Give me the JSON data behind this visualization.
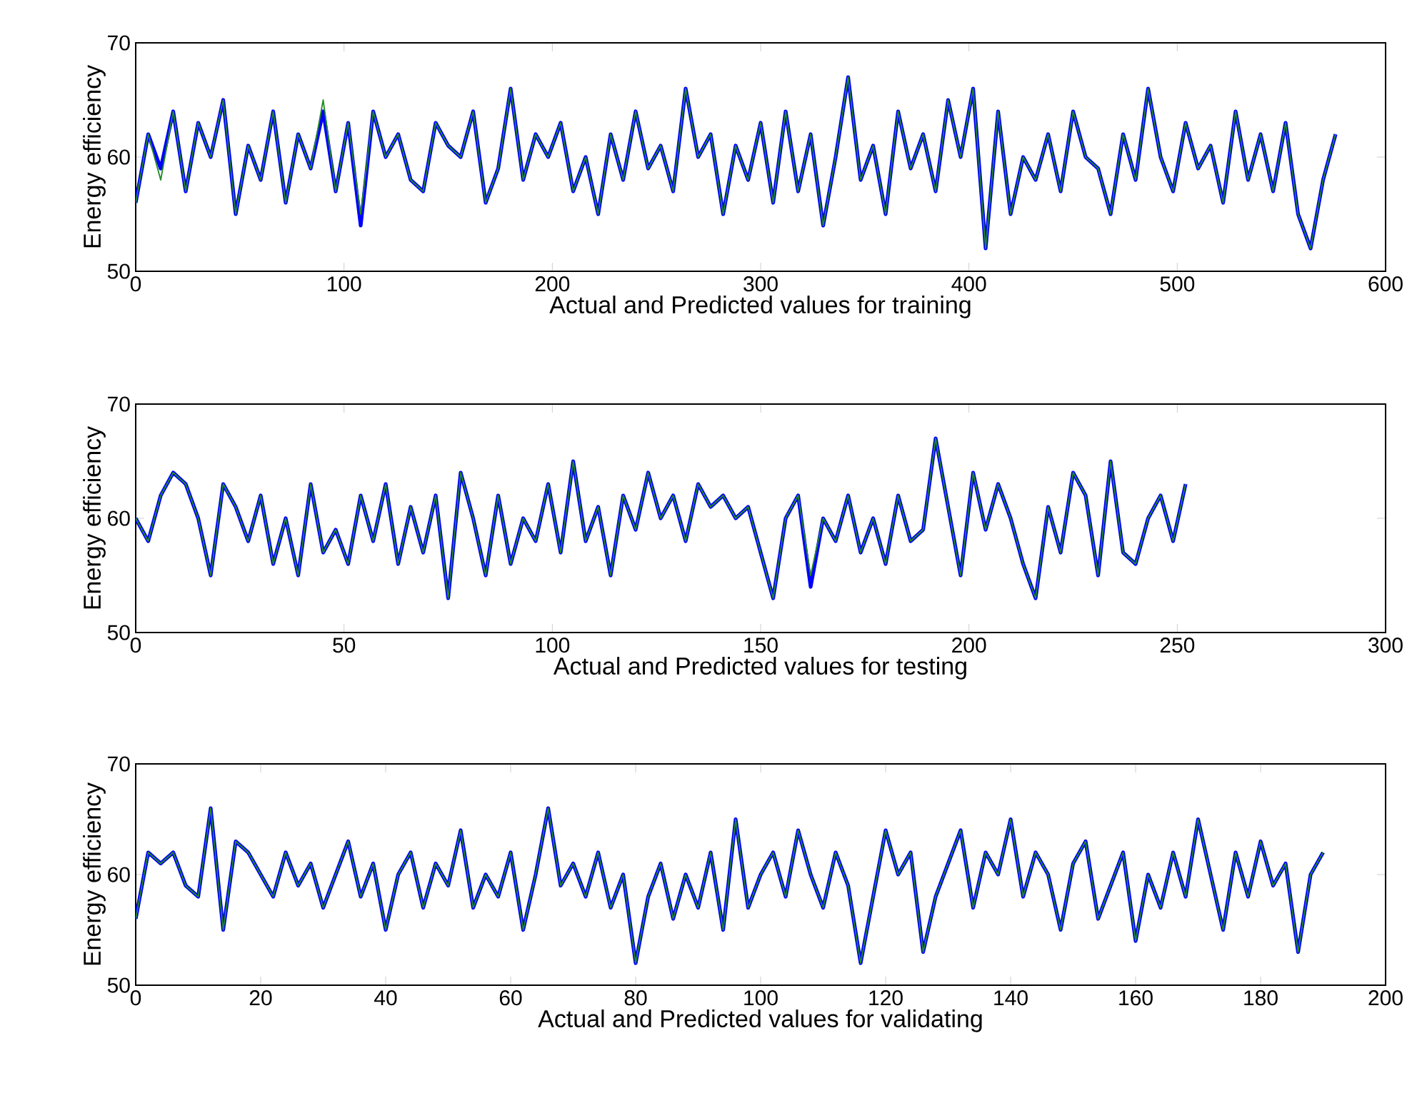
{
  "chart_data": [
    {
      "type": "line",
      "xlabel": "Actual and Predicted values for training",
      "ylabel": "Energy efficiency",
      "xlim": [
        0,
        600
      ],
      "ylim": [
        50,
        70
      ],
      "xticks": [
        0,
        100,
        200,
        300,
        400,
        500,
        600
      ],
      "yticks": [
        50,
        60,
        70
      ],
      "grid": false,
      "series": [
        {
          "color": "#0000ff",
          "x": [
            0,
            6,
            12,
            18,
            24,
            30,
            36,
            42,
            48,
            54,
            60,
            66,
            72,
            78,
            84,
            90,
            96,
            102,
            108,
            114,
            120,
            126,
            132,
            138,
            144,
            150,
            156,
            162,
            168,
            174,
            180,
            186,
            192,
            198,
            204,
            210,
            216,
            222,
            228,
            234,
            240,
            246,
            252,
            258,
            264,
            270,
            276,
            282,
            288,
            294,
            300,
            306,
            312,
            318,
            324,
            330,
            336,
            342,
            348,
            354,
            360,
            366,
            372,
            378,
            384,
            390,
            396,
            402,
            408,
            414,
            420,
            426,
            432,
            438,
            444,
            450,
            456,
            462,
            468,
            474,
            480,
            486,
            492,
            498,
            504,
            510,
            516,
            522,
            528,
            534,
            540,
            546,
            552,
            558,
            564,
            570,
            576
          ],
          "values": [
            56,
            62,
            59,
            64,
            57,
            63,
            60,
            65,
            55,
            61,
            58,
            64,
            56,
            62,
            59,
            64,
            57,
            63,
            54,
            64,
            60,
            62,
            58,
            57,
            63,
            61,
            60,
            64,
            56,
            59,
            66,
            58,
            62,
            60,
            63,
            57,
            60,
            55,
            62,
            58,
            64,
            59,
            61,
            57,
            66,
            60,
            62,
            55,
            61,
            58,
            63,
            56,
            64,
            57,
            62,
            54,
            60,
            67,
            58,
            61,
            55,
            64,
            59,
            62,
            57,
            65,
            60,
            66,
            52,
            64,
            55,
            60,
            58,
            62,
            57,
            64,
            60,
            59,
            55,
            62,
            58,
            66,
            60,
            57,
            63,
            59,
            61,
            56,
            64,
            58,
            62,
            57,
            63,
            55,
            52,
            58,
            62
          ]
        },
        {
          "color": "#218a21",
          "x": [
            0,
            6,
            12,
            18,
            24,
            30,
            36,
            42,
            48,
            54,
            60,
            66,
            72,
            78,
            84,
            90,
            96,
            102,
            108,
            114,
            120,
            126,
            132,
            138,
            144,
            150,
            156,
            162,
            168,
            174,
            180,
            186,
            192,
            198,
            204,
            210,
            216,
            222,
            228,
            234,
            240,
            246,
            252,
            258,
            264,
            270,
            276,
            282,
            288,
            294,
            300,
            306,
            312,
            318,
            324,
            330,
            336,
            342,
            348,
            354,
            360,
            366,
            372,
            378,
            384,
            390,
            396,
            402,
            408,
            414,
            420,
            426,
            432,
            438,
            444,
            450,
            456,
            462,
            468,
            474,
            480,
            486,
            492,
            498,
            504,
            510,
            516,
            522,
            528,
            534,
            540,
            546,
            552,
            558,
            564,
            570,
            576
          ],
          "values": [
            56,
            62,
            58,
            64,
            57,
            63,
            60,
            65,
            55,
            61,
            58,
            64,
            56,
            62,
            59,
            65,
            57,
            63,
            55,
            64,
            60,
            62,
            58,
            57,
            63,
            61,
            60,
            64,
            56,
            59,
            66,
            58,
            62,
            60,
            63,
            57,
            60,
            55,
            62,
            58,
            64,
            59,
            61,
            57,
            66,
            60,
            62,
            55,
            61,
            58,
            63,
            56,
            64,
            57,
            62,
            54,
            60,
            67,
            58,
            61,
            55,
            64,
            59,
            62,
            57,
            65,
            60,
            66,
            52,
            64,
            55,
            60,
            58,
            62,
            57,
            64,
            60,
            59,
            55,
            62,
            58,
            66,
            60,
            57,
            63,
            59,
            61,
            56,
            64,
            58,
            62,
            57,
            63,
            55,
            52,
            58,
            62
          ]
        }
      ]
    },
    {
      "type": "line",
      "xlabel": "Actual and Predicted values for testing",
      "ylabel": "Energy efficiency",
      "xlim": [
        0,
        300
      ],
      "ylim": [
        50,
        70
      ],
      "xticks": [
        0,
        50,
        100,
        150,
        200,
        250,
        300
      ],
      "yticks": [
        50,
        60,
        70
      ],
      "grid": false,
      "series": [
        {
          "color": "#0000ff",
          "x": [
            0,
            3,
            6,
            9,
            12,
            15,
            18,
            21,
            24,
            27,
            30,
            33,
            36,
            39,
            42,
            45,
            48,
            51,
            54,
            57,
            60,
            63,
            66,
            69,
            72,
            75,
            78,
            81,
            84,
            87,
            90,
            93,
            96,
            99,
            102,
            105,
            108,
            111,
            114,
            117,
            120,
            123,
            126,
            129,
            132,
            135,
            138,
            141,
            144,
            147,
            150,
            153,
            156,
            159,
            162,
            165,
            168,
            171,
            174,
            177,
            180,
            183,
            186,
            189,
            192,
            195,
            198,
            201,
            204,
            207,
            210,
            213,
            216,
            219,
            222,
            225,
            228,
            231,
            234,
            237,
            240,
            243,
            246,
            249,
            252
          ],
          "values": [
            60,
            58,
            62,
            64,
            63,
            60,
            55,
            63,
            61,
            58,
            62,
            56,
            60,
            55,
            63,
            57,
            59,
            56,
            62,
            58,
            63,
            56,
            61,
            57,
            62,
            53,
            64,
            60,
            55,
            62,
            56,
            60,
            58,
            63,
            57,
            65,
            58,
            61,
            55,
            62,
            59,
            64,
            60,
            62,
            58,
            63,
            61,
            62,
            60,
            61,
            57,
            53,
            60,
            62,
            54,
            60,
            58,
            62,
            57,
            60,
            56,
            62,
            58,
            59,
            67,
            61,
            55,
            64,
            59,
            63,
            60,
            56,
            53,
            61,
            57,
            64,
            62,
            55,
            65,
            57,
            56,
            60,
            62,
            58,
            63
          ]
        },
        {
          "color": "#218a21",
          "x": [
            0,
            3,
            6,
            9,
            12,
            15,
            18,
            21,
            24,
            27,
            30,
            33,
            36,
            39,
            42,
            45,
            48,
            51,
            54,
            57,
            60,
            63,
            66,
            69,
            72,
            75,
            78,
            81,
            84,
            87,
            90,
            93,
            96,
            99,
            102,
            105,
            108,
            111,
            114,
            117,
            120,
            123,
            126,
            129,
            132,
            135,
            138,
            141,
            144,
            147,
            150,
            153,
            156,
            159,
            162,
            165,
            168,
            171,
            174,
            177,
            180,
            183,
            186,
            189,
            192,
            195,
            198,
            201,
            204,
            207,
            210,
            213,
            216,
            219,
            222,
            225,
            228,
            231,
            234,
            237,
            240,
            243,
            246,
            249,
            252
          ],
          "values": [
            60,
            58,
            62,
            64,
            63,
            60,
            55,
            63,
            61,
            58,
            62,
            56,
            60,
            55,
            63,
            57,
            59,
            56,
            62,
            58,
            63,
            56,
            61,
            57,
            62,
            53,
            64,
            60,
            55,
            62,
            56,
            60,
            58,
            63,
            57,
            65,
            58,
            61,
            55,
            62,
            59,
            64,
            60,
            62,
            58,
            63,
            61,
            62,
            60,
            61,
            57,
            53,
            60,
            62,
            55,
            60,
            58,
            62,
            57,
            60,
            56,
            62,
            58,
            59,
            67,
            61,
            55,
            64,
            59,
            63,
            60,
            56,
            53,
            61,
            57,
            64,
            62,
            55,
            65,
            57,
            56,
            60,
            62,
            58,
            63
          ]
        }
      ]
    },
    {
      "type": "line",
      "xlabel": "Actual and Predicted values for validating",
      "ylabel": "Energy efficiency",
      "xlim": [
        0,
        200
      ],
      "ylim": [
        50,
        70
      ],
      "xticks": [
        0,
        20,
        40,
        60,
        80,
        100,
        120,
        140,
        160,
        180,
        200
      ],
      "yticks": [
        50,
        60,
        70
      ],
      "grid": false,
      "series": [
        {
          "color": "#0000ff",
          "x": [
            0,
            2,
            4,
            6,
            8,
            10,
            12,
            14,
            16,
            18,
            20,
            22,
            24,
            26,
            28,
            30,
            32,
            34,
            36,
            38,
            40,
            42,
            44,
            46,
            48,
            50,
            52,
            54,
            56,
            58,
            60,
            62,
            64,
            66,
            68,
            70,
            72,
            74,
            76,
            78,
            80,
            82,
            84,
            86,
            88,
            90,
            92,
            94,
            96,
            98,
            100,
            102,
            104,
            106,
            108,
            110,
            112,
            114,
            116,
            118,
            120,
            122,
            124,
            126,
            128,
            130,
            132,
            134,
            136,
            138,
            140,
            142,
            144,
            146,
            148,
            150,
            152,
            154,
            156,
            158,
            160,
            162,
            164,
            166,
            168,
            170,
            172,
            174,
            176,
            178,
            180,
            182,
            184,
            186,
            188,
            190
          ],
          "values": [
            56,
            62,
            61,
            62,
            59,
            58,
            66,
            55,
            63,
            62,
            60,
            58,
            62,
            59,
            61,
            57,
            60,
            63,
            58,
            61,
            55,
            60,
            62,
            57,
            61,
            59,
            64,
            57,
            60,
            58,
            62,
            55,
            60,
            66,
            59,
            61,
            58,
            62,
            57,
            60,
            52,
            58,
            61,
            56,
            60,
            57,
            62,
            55,
            65,
            57,
            60,
            62,
            58,
            64,
            60,
            57,
            62,
            59,
            52,
            58,
            64,
            60,
            62,
            53,
            58,
            61,
            64,
            57,
            62,
            60,
            65,
            58,
            62,
            60,
            55,
            61,
            63,
            56,
            59,
            62,
            54,
            60,
            57,
            62,
            58,
            65,
            60,
            55,
            62,
            58,
            63,
            59,
            61,
            53,
            60,
            62
          ]
        },
        {
          "color": "#218a21",
          "x": [
            0,
            2,
            4,
            6,
            8,
            10,
            12,
            14,
            16,
            18,
            20,
            22,
            24,
            26,
            28,
            30,
            32,
            34,
            36,
            38,
            40,
            42,
            44,
            46,
            48,
            50,
            52,
            54,
            56,
            58,
            60,
            62,
            64,
            66,
            68,
            70,
            72,
            74,
            76,
            78,
            80,
            82,
            84,
            86,
            88,
            90,
            92,
            94,
            96,
            98,
            100,
            102,
            104,
            106,
            108,
            110,
            112,
            114,
            116,
            118,
            120,
            122,
            124,
            126,
            128,
            130,
            132,
            134,
            136,
            138,
            140,
            142,
            144,
            146,
            148,
            150,
            152,
            154,
            156,
            158,
            160,
            162,
            164,
            166,
            168,
            170,
            172,
            174,
            176,
            178,
            180,
            182,
            184,
            186,
            188,
            190
          ],
          "values": [
            56,
            62,
            61,
            62,
            59,
            58,
            66,
            55,
            63,
            62,
            60,
            58,
            62,
            59,
            61,
            57,
            60,
            63,
            58,
            61,
            55,
            60,
            62,
            57,
            61,
            59,
            64,
            57,
            60,
            58,
            62,
            55,
            60,
            66,
            59,
            61,
            58,
            62,
            57,
            60,
            52,
            58,
            61,
            56,
            60,
            57,
            62,
            55,
            65,
            57,
            60,
            62,
            58,
            64,
            60,
            57,
            62,
            59,
            52,
            58,
            64,
            60,
            62,
            53,
            58,
            61,
            64,
            57,
            62,
            60,
            65,
            58,
            62,
            60,
            55,
            61,
            63,
            56,
            59,
            62,
            54,
            60,
            57,
            62,
            58,
            65,
            60,
            55,
            62,
            58,
            63,
            59,
            61,
            53,
            60,
            62
          ]
        }
      ]
    }
  ]
}
